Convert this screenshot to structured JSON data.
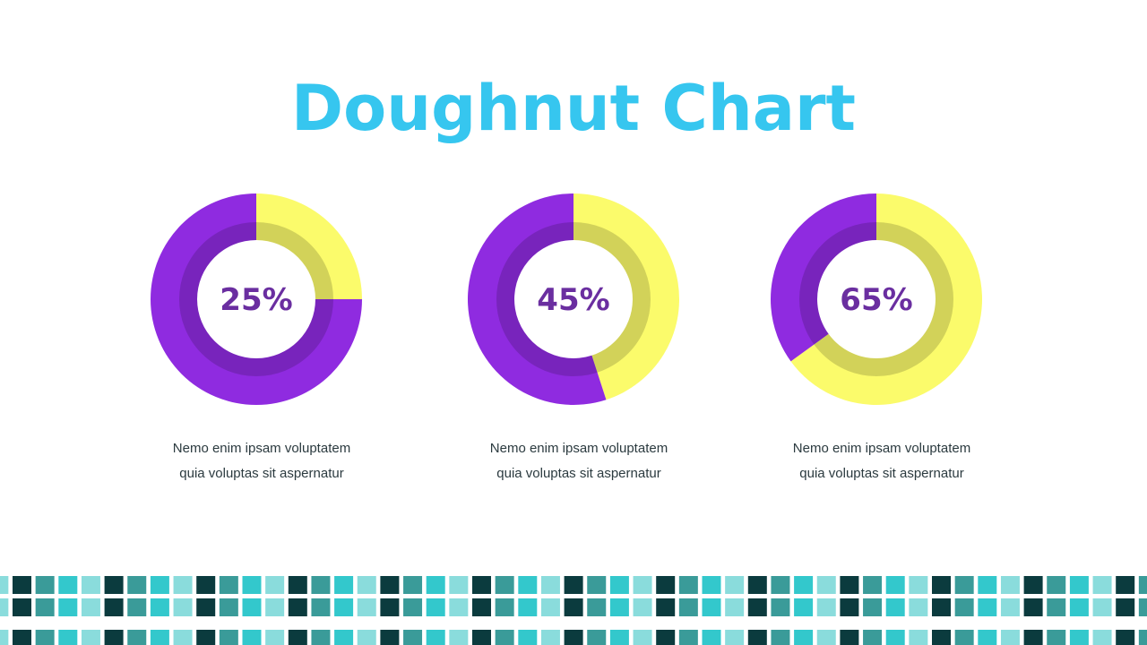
{
  "title": "Doughnut Chart",
  "chart_data": [
    {
      "type": "doughnut",
      "values": [
        25,
        75
      ],
      "value_labels": [
        "25%",
        null
      ],
      "colors": [
        "#fbfb6b",
        "#8f2be0"
      ],
      "caption": [
        "Nemo enim ipsam voluptatem",
        "quia voluptas sit aspernatur"
      ]
    },
    {
      "type": "doughnut",
      "values": [
        45,
        55
      ],
      "value_labels": [
        "45%",
        null
      ],
      "colors": [
        "#fbfb6b",
        "#8f2be0"
      ],
      "caption": [
        "Nemo enim ipsam voluptatem",
        "quia voluptas sit aspernatur"
      ]
    },
    {
      "type": "doughnut",
      "values": [
        65,
        35
      ],
      "value_labels": [
        "65%",
        null
      ],
      "colors": [
        "#fbfb6b",
        "#8f2be0"
      ],
      "caption": [
        "Nemo enim ipsam voluptatem",
        "quia voluptas sit aspernatur"
      ]
    }
  ]
}
